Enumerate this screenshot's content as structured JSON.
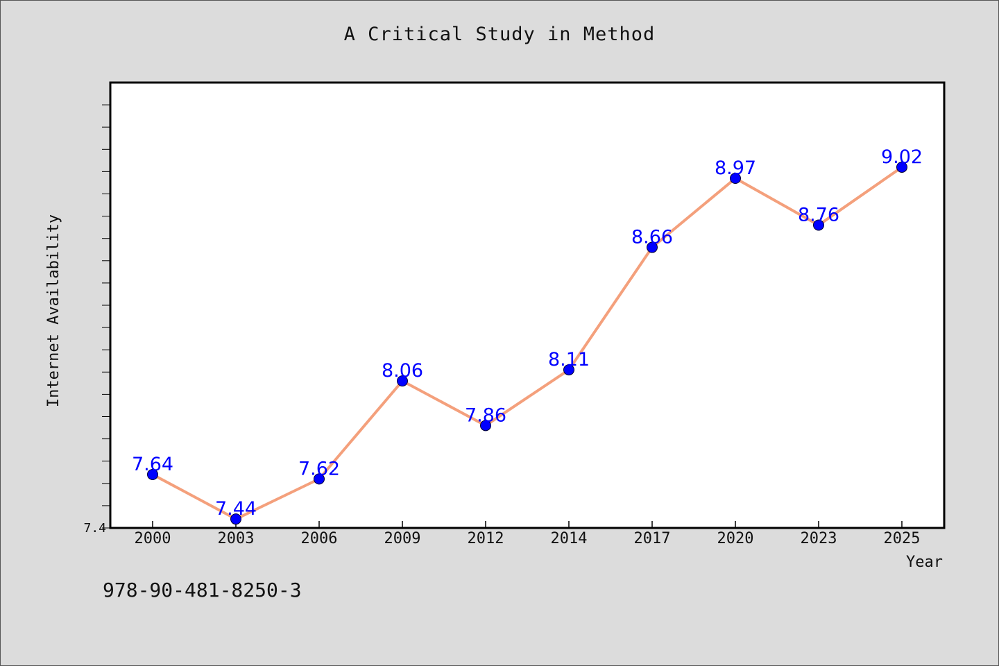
{
  "page": {
    "title": "A Critical Study in Method",
    "footer_text": "978-90-481-8250-3"
  },
  "colors": {
    "background": "#dcdcdc",
    "plot_background": "#ffffff",
    "line": "#f4a07c",
    "marker": "#0000ff",
    "label": "#0000ff"
  },
  "chart_data": {
    "type": "line",
    "title": "A Critical Study in Method",
    "xlabel": "Year",
    "ylabel": "Internet Availability",
    "categories": [
      "2000",
      "2003",
      "2006",
      "2009",
      "2012",
      "2014",
      "2017",
      "2020",
      "2023",
      "2025"
    ],
    "series": [
      {
        "values": [
          7.64,
          7.44,
          7.62,
          8.06,
          7.86,
          8.11,
          8.66,
          8.97,
          8.76,
          9.02
        ]
      }
    ],
    "data_labels": [
      "7.64",
      "7.44",
      "7.62",
      "8.06",
      "7.86",
      "8.11",
      "8.66",
      "8.97",
      "8.76",
      "9.02"
    ],
    "ylim": [
      7.4,
      9.4
    ],
    "y_tick_labels": [
      "7.4"
    ],
    "grid": false,
    "legend": "none"
  }
}
